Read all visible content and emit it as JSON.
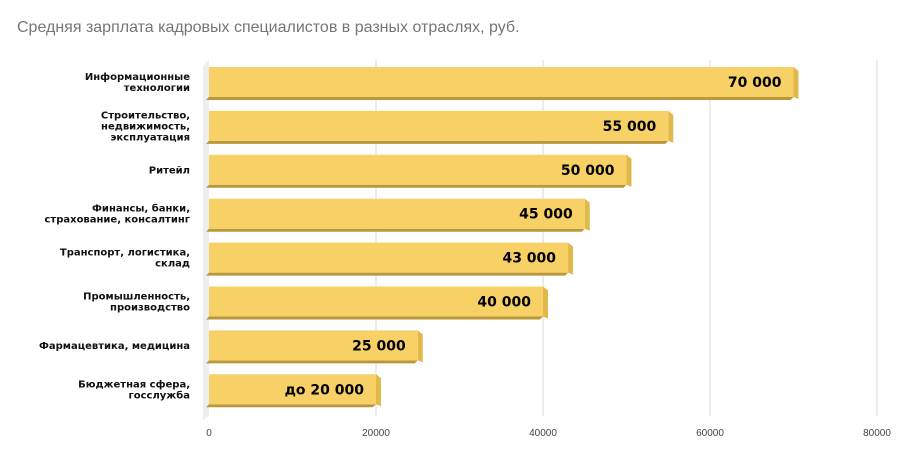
{
  "title": "Средняя зарплата кадровых специалистов в разных отраслях, руб.",
  "chart_data": {
    "type": "bar",
    "orientation": "horizontal",
    "title": "Средняя зарплата кадровых специалистов в разных отраслях, руб.",
    "categories": [
      [
        "Информационные",
        "технологии"
      ],
      [
        "Строительство,",
        "недвижимость,",
        "эксплуатация"
      ],
      [
        "Ритейл"
      ],
      [
        "Финансы, банки,",
        "страхование, консалтинг"
      ],
      [
        "Транспорт, логистика,",
        "склад"
      ],
      [
        "Промышленность,",
        "производство"
      ],
      [
        "Фармацевтика, медицина"
      ],
      [
        "Бюджетная сфера,",
        "госслужба"
      ]
    ],
    "values": [
      70000,
      55000,
      50000,
      45000,
      43000,
      40000,
      25000,
      20000
    ],
    "value_labels": [
      "70 000",
      "55 000",
      "50 000",
      "45 000",
      "43 000",
      "40 000",
      "25 000",
      "до 20 000"
    ],
    "xticks": [
      "0",
      "20000",
      "40000",
      "60000",
      "80000"
    ],
    "xlim": [
      0,
      80000
    ],
    "grid": true,
    "bar_color": "#F7D165",
    "bar_shadow_color": "#B8983A"
  }
}
